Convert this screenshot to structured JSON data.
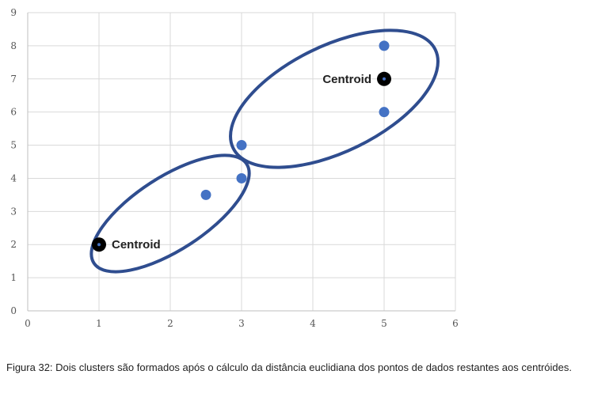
{
  "chart_data": {
    "type": "scatter",
    "xlim": [
      0,
      6
    ],
    "ylim": [
      0,
      9
    ],
    "x_ticks": [
      0,
      1,
      2,
      3,
      4,
      5,
      6
    ],
    "y_ticks": [
      0,
      1,
      2,
      3,
      4,
      5,
      6,
      7,
      8,
      9
    ],
    "grid": true,
    "points": [
      {
        "x": 2.5,
        "y": 3.5
      },
      {
        "x": 3,
        "y": 4
      },
      {
        "x": 3,
        "y": 5
      },
      {
        "x": 5,
        "y": 6
      },
      {
        "x": 5,
        "y": 8
      }
    ],
    "centroids": [
      {
        "x": 1,
        "y": 2,
        "label": "Centroid"
      },
      {
        "x": 5,
        "y": 7,
        "label": "Centroid"
      }
    ],
    "colors": {
      "points": "#4472C4",
      "clusters": "#2F4D8F",
      "centroid": "#000000",
      "grid": "#d9d9d9"
    }
  },
  "caption": "Figura 32: Dois clusters são formados após o cálculo da distância euclidiana dos pontos de dados restantes aos centróides."
}
